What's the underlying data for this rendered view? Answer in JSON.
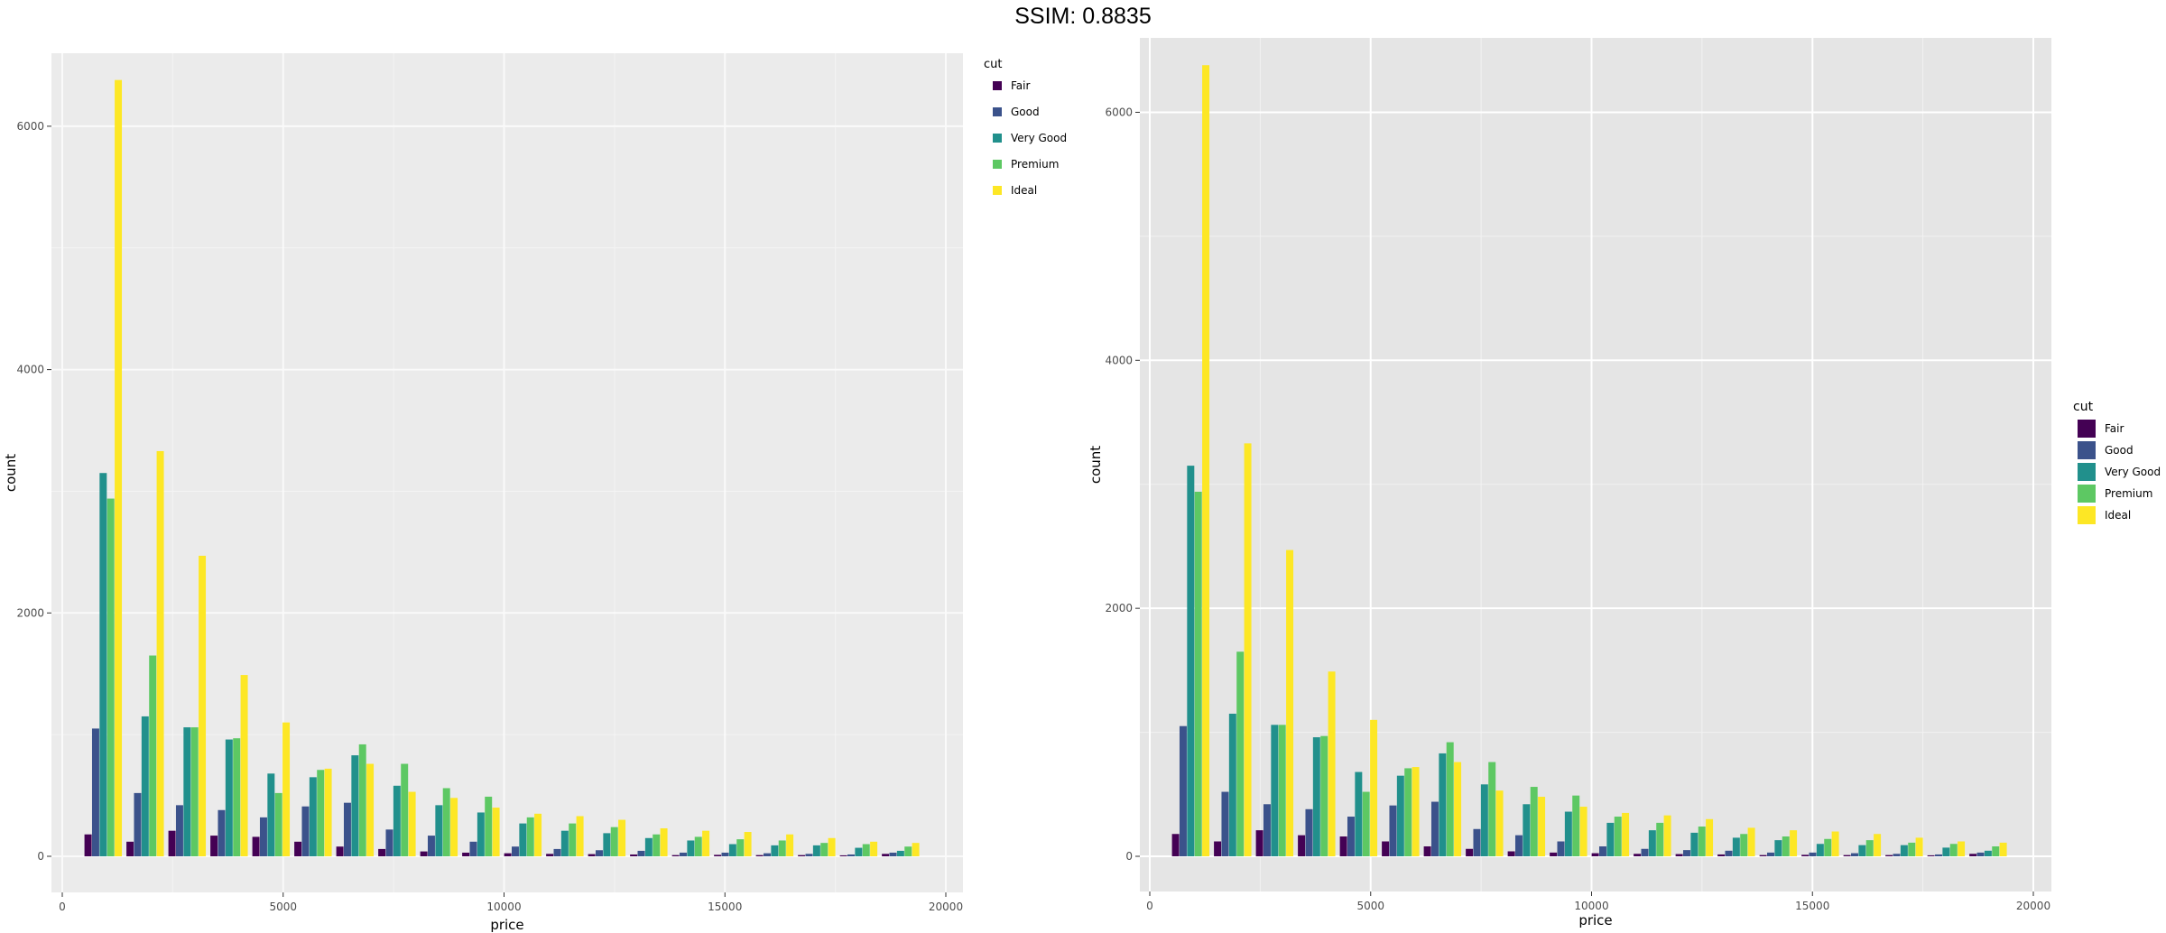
{
  "header": {
    "title": "SSIM: 0.8835"
  },
  "chart_data": [
    {
      "type": "bar",
      "xlabel": "price",
      "ylabel": "count",
      "xlim": [
        0,
        20000
      ],
      "ylim": [
        0,
        6600
      ],
      "x_ticks": [
        "0",
        "5000",
        "10000",
        "15000",
        "20000"
      ],
      "y_ticks": [
        "0",
        "2000",
        "4000",
        "6000"
      ],
      "legend": {
        "title": "cut",
        "placement": "right-top",
        "entries": [
          "Fair",
          "Good",
          "Very Good",
          "Premium",
          "Ideal"
        ]
      },
      "colors": [
        "#440154",
        "#3B528B",
        "#21908C",
        "#5DC863",
        "#FDE725"
      ],
      "bin_centers": [
        930,
        1880,
        2830,
        3780,
        4730,
        5680,
        6630,
        7580,
        8530,
        9480,
        10430,
        11380,
        12330,
        13280,
        14230,
        15180,
        16130,
        17080,
        18030,
        18980
      ],
      "series": [
        {
          "name": "Fair",
          "values": [
            180,
            120,
            210,
            170,
            160,
            120,
            80,
            60,
            40,
            30,
            25,
            20,
            18,
            15,
            10,
            12,
            10,
            10,
            8,
            20
          ]
        },
        {
          "name": "Good",
          "values": [
            1050,
            520,
            420,
            380,
            320,
            410,
            440,
            220,
            170,
            120,
            80,
            60,
            50,
            45,
            30,
            30,
            25,
            20,
            15,
            30
          ]
        },
        {
          "name": "Very Good",
          "values": [
            3150,
            1150,
            1060,
            960,
            680,
            650,
            830,
            580,
            420,
            360,
            270,
            210,
            190,
            150,
            130,
            100,
            90,
            90,
            70,
            45
          ]
        },
        {
          "name": "Premium",
          "values": [
            2940,
            1650,
            1060,
            970,
            520,
            710,
            920,
            760,
            560,
            490,
            320,
            270,
            240,
            180,
            160,
            140,
            130,
            110,
            100,
            80
          ]
        },
        {
          "name": "Ideal",
          "values": [
            6380,
            3330,
            2470,
            1490,
            1100,
            720,
            760,
            530,
            480,
            400,
            350,
            330,
            300,
            230,
            210,
            200,
            180,
            150,
            120,
            110
          ]
        }
      ]
    },
    {
      "type": "bar",
      "xlabel": "price",
      "ylabel": "count",
      "xlim": [
        0,
        20000
      ],
      "ylim": [
        0,
        6600
      ],
      "x_ticks": [
        "0",
        "5000",
        "10000",
        "15000",
        "20000"
      ],
      "y_ticks": [
        "0",
        "2000",
        "4000",
        "6000"
      ],
      "legend": {
        "title": "cut",
        "placement": "right-center",
        "entries": [
          "Fair",
          "Good",
          "Very Good",
          "Premium",
          "Ideal"
        ]
      },
      "colors": [
        "#440154",
        "#3B528B",
        "#21908C",
        "#5DC863",
        "#FDE725"
      ],
      "bin_centers": [
        930,
        1880,
        2830,
        3780,
        4730,
        5680,
        6630,
        7580,
        8530,
        9480,
        10430,
        11380,
        12330,
        13280,
        14230,
        15180,
        16130,
        17080,
        18030,
        18980
      ],
      "series": [
        {
          "name": "Fair",
          "values": [
            180,
            120,
            210,
            170,
            160,
            120,
            80,
            60,
            40,
            30,
            25,
            20,
            18,
            15,
            10,
            12,
            10,
            10,
            8,
            20
          ]
        },
        {
          "name": "Good",
          "values": [
            1050,
            520,
            420,
            380,
            320,
            410,
            440,
            220,
            170,
            120,
            80,
            60,
            50,
            45,
            30,
            30,
            25,
            20,
            15,
            30
          ]
        },
        {
          "name": "Very Good",
          "values": [
            3150,
            1150,
            1060,
            960,
            680,
            650,
            830,
            580,
            420,
            360,
            270,
            210,
            190,
            150,
            130,
            100,
            90,
            90,
            70,
            45
          ]
        },
        {
          "name": "Premium",
          "values": [
            2940,
            1650,
            1060,
            970,
            520,
            710,
            920,
            760,
            560,
            490,
            320,
            270,
            240,
            180,
            160,
            140,
            130,
            110,
            100,
            80
          ]
        },
        {
          "name": "Ideal",
          "values": [
            6380,
            3330,
            2470,
            1490,
            1100,
            720,
            760,
            530,
            480,
            400,
            350,
            330,
            300,
            230,
            210,
            200,
            180,
            150,
            120,
            110
          ]
        }
      ]
    }
  ]
}
